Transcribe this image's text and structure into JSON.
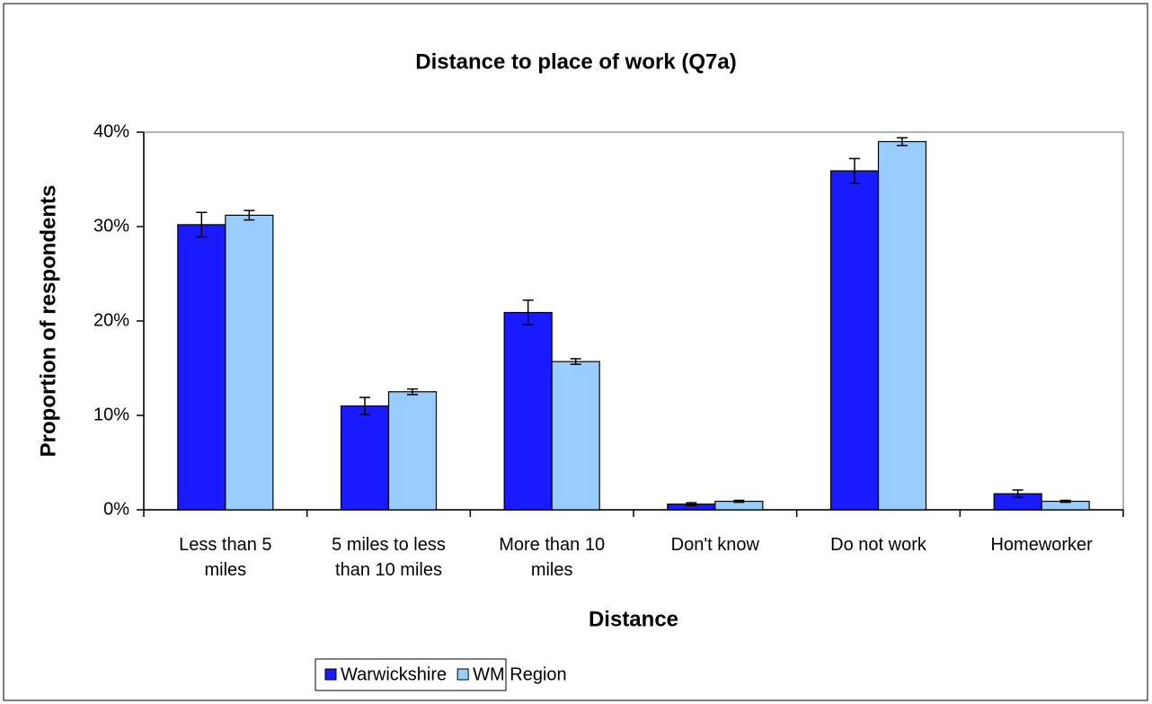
{
  "chart_data": {
    "type": "bar",
    "title": "Distance to place of work (Q7a)",
    "x_label": "Distance",
    "y_label": "Proportion of respondents",
    "categories": [
      "Less than 5\nmiles",
      "5 miles to less\nthan 10 miles",
      "More than 10\nmiles",
      "Don't know",
      "Do not work",
      "Homeworker"
    ],
    "series": [
      {
        "name": "Warwickshire",
        "color": "#1a1aff",
        "values": [
          30.2,
          11.0,
          20.9,
          0.6,
          35.9,
          1.7
        ],
        "errors": [
          1.3,
          0.9,
          1.3,
          0.15,
          1.3,
          0.4
        ]
      },
      {
        "name": "WM Region",
        "color": "#99ccff",
        "values": [
          31.2,
          12.5,
          15.7,
          0.9,
          39.0,
          0.9
        ],
        "errors": [
          0.5,
          0.3,
          0.3,
          0.1,
          0.4,
          0.1
        ]
      }
    ],
    "ylim": [
      0,
      40
    ],
    "yticks": [
      {
        "value": 0,
        "label": "0%"
      },
      {
        "value": 10,
        "label": "10%"
      },
      {
        "value": 20,
        "label": "20%"
      },
      {
        "value": 30,
        "label": "30%"
      },
      {
        "value": 40,
        "label": "40%"
      }
    ],
    "legend": "bottom"
  }
}
